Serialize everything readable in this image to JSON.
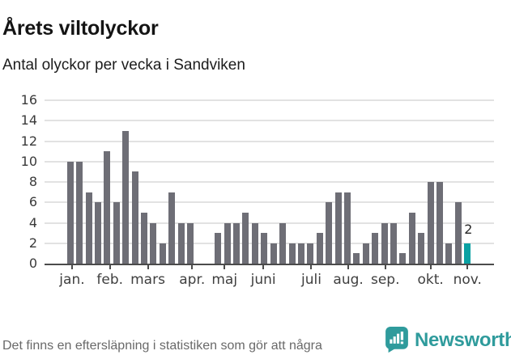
{
  "header": {
    "title": "Årets viltolyckor",
    "subtitle": "Antal olyckor per vecka i Sandviken"
  },
  "chart_data": {
    "type": "bar",
    "title": "Årets viltolyckor",
    "subtitle": "Antal olyckor per vecka i Sandviken",
    "xlabel": "",
    "ylabel": "",
    "ylim": [
      0,
      16
    ],
    "yticks": [
      0,
      2,
      4,
      6,
      8,
      10,
      12,
      14,
      16
    ],
    "grid": true,
    "legend": "none",
    "x_unit": "vecka",
    "weeks": [
      1,
      2,
      3,
      4,
      5,
      6,
      7,
      8,
      9,
      10,
      11,
      12,
      13,
      14,
      15,
      16,
      17,
      18,
      19,
      20,
      21,
      22,
      23,
      24,
      25,
      26,
      27,
      28,
      29,
      30,
      31,
      32,
      33,
      34,
      35,
      36,
      37,
      38,
      39,
      40,
      41,
      42,
      43,
      44
    ],
    "values": [
      10,
      10,
      7,
      6,
      11,
      6,
      13,
      9,
      5,
      4,
      2,
      7,
      4,
      4,
      0,
      0,
      3,
      4,
      4,
      5,
      4,
      3,
      2,
      4,
      2,
      2,
      2,
      3,
      6,
      7,
      7,
      1,
      2,
      3,
      4,
      4,
      1,
      5,
      3,
      8,
      8,
      2,
      6,
      2
    ],
    "month_ticks": [
      {
        "label": "jan.",
        "week": 1.2
      },
      {
        "label": "feb.",
        "week": 5.3
      },
      {
        "label": "mars",
        "week": 9.4
      },
      {
        "label": "apr.",
        "week": 14.2
      },
      {
        "label": "maj",
        "week": 17.7
      },
      {
        "label": "juni",
        "week": 21.9
      },
      {
        "label": "juli",
        "week": 27.1
      },
      {
        "label": "aug.",
        "week": 31.1
      },
      {
        "label": "sep.",
        "week": 35.1
      },
      {
        "label": "okt.",
        "week": 40.0
      },
      {
        "label": "nov.",
        "week": 44.0
      }
    ],
    "annotation": {
      "text": "2",
      "week": 44,
      "value": 2
    },
    "bar_color": "#6e6e76",
    "highlight_color": "#0aa1a3",
    "highlight_week": 44,
    "gridline_color": "#e2e2e2",
    "axis_color": "#4b4b4b"
  },
  "footer": {
    "note": "Det finns en eftersläpning i statistiken som gör att några olyckor kan saknas de senaste veckorna.",
    "brand": "Newsworthy"
  }
}
